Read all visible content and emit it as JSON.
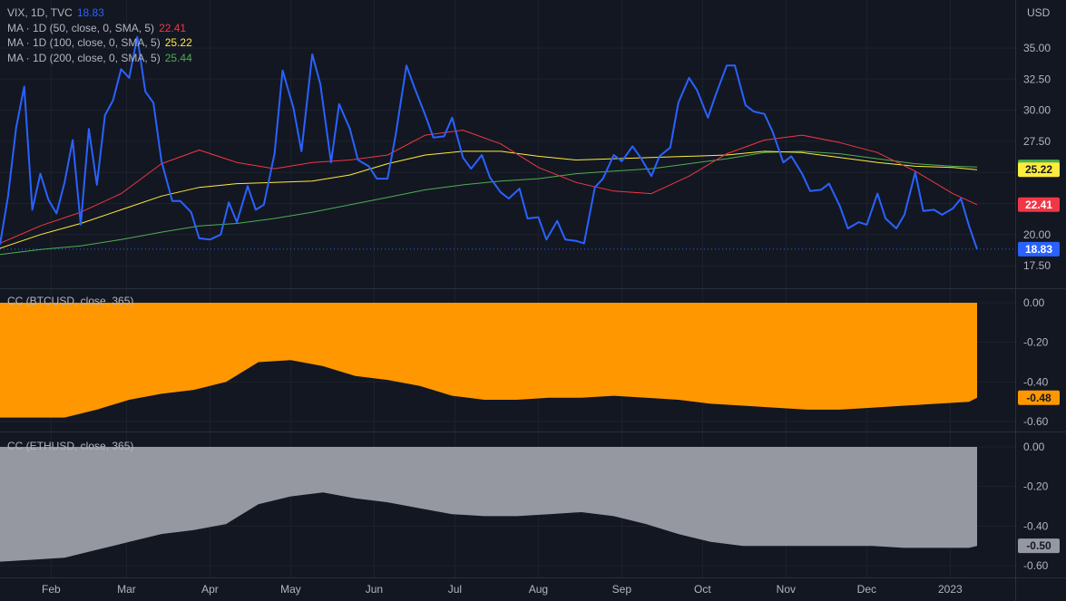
{
  "legend": {
    "main": {
      "label": "VIX, 1D, TVC",
      "value": "18.83",
      "color": "#2962ff"
    },
    "ma50": {
      "label": "MA · 1D (50, close, 0, SMA, 5)",
      "value": "22.41",
      "color": "#f23645"
    },
    "ma100": {
      "label": "MA · 1D (100, close, 0, SMA, 5)",
      "value": "25.22",
      "color": "#ffeb3b"
    },
    "ma200": {
      "label": "MA · 1D (200, close, 0, SMA, 5)",
      "value": "25.44",
      "color": "#4caf50"
    }
  },
  "price_axis": {
    "unit": "USD",
    "ticks": [
      "35.00",
      "32.50",
      "30.00",
      "27.50",
      "25.00",
      "22.50",
      "20.00",
      "17.50"
    ]
  },
  "badges": {
    "ma200": {
      "text": "25.44",
      "value": 25.44,
      "bg": "#4caf50",
      "fg": "#131722"
    },
    "ma100": {
      "text": "25.22",
      "value": 25.22,
      "bg": "#ffeb3b",
      "fg": "#131722"
    },
    "ma50": {
      "text": "22.41",
      "value": 22.41,
      "bg": "#f23645",
      "fg": "#ffffff"
    },
    "last": {
      "text": "18.83",
      "value": 18.83,
      "bg": "#2962ff",
      "fg": "#ffffff"
    },
    "btc": {
      "text": "-0.48",
      "value": -0.48,
      "bg": "#ff9800",
      "fg": "#131722"
    },
    "eth": {
      "text": "-0.50",
      "value": -0.5,
      "bg": "#9598a1",
      "fg": "#131722"
    }
  },
  "panes": {
    "btc": {
      "title": "CC (BTCUSD, close, 365)",
      "ticks": [
        "0.00",
        "-0.20",
        "-0.40",
        "-0.60"
      ],
      "color": "#ff9800"
    },
    "eth": {
      "title": "CC (ETHUSD, close, 365)",
      "ticks": [
        "0.00",
        "-0.20",
        "-0.40",
        "-0.60"
      ],
      "color": "#9598a1"
    }
  },
  "time_axis": {
    "labels": [
      "Feb",
      "Mar",
      "Apr",
      "May",
      "Jun",
      "Jul",
      "Aug",
      "Sep",
      "Oct",
      "Nov",
      "Dec",
      "2023"
    ]
  },
  "chart_data": [
    {
      "type": "line",
      "title": "VIX, 1D, TVC",
      "ylabel": "USD",
      "ylim": [
        17.0,
        36.5
      ],
      "x_domain": [
        "2022-01-13",
        "2023-01-11"
      ],
      "x_ticks": [
        {
          "label": "Feb",
          "date": "2022-02-01"
        },
        {
          "label": "Mar",
          "date": "2022-03-01"
        },
        {
          "label": "Apr",
          "date": "2022-04-01"
        },
        {
          "label": "May",
          "date": "2022-05-01"
        },
        {
          "label": "Jun",
          "date": "2022-06-01"
        },
        {
          "label": "Jul",
          "date": "2022-07-01"
        },
        {
          "label": "Aug",
          "date": "2022-08-01"
        },
        {
          "label": "Sep",
          "date": "2022-09-01"
        },
        {
          "label": "Oct",
          "date": "2022-10-01"
        },
        {
          "label": "Nov",
          "date": "2022-11-01"
        },
        {
          "label": "Dec",
          "date": "2022-12-01"
        },
        {
          "label": "2023",
          "date": "2023-01-01"
        }
      ],
      "series": [
        {
          "name": "VIX, 1D, TVC",
          "color": "#2962ff",
          "width": 2,
          "x": [
            "2022-01-13",
            "2022-01-16",
            "2022-01-19",
            "2022-01-22",
            "2022-01-25",
            "2022-01-28",
            "2022-01-31",
            "2022-02-03",
            "2022-02-06",
            "2022-02-09",
            "2022-02-12",
            "2022-02-15",
            "2022-02-18",
            "2022-02-21",
            "2022-02-24",
            "2022-02-27",
            "2022-03-02",
            "2022-03-05",
            "2022-03-08",
            "2022-03-11",
            "2022-03-14",
            "2022-03-18",
            "2022-03-21",
            "2022-03-25",
            "2022-03-28",
            "2022-04-01",
            "2022-04-05",
            "2022-04-08",
            "2022-04-11",
            "2022-04-15",
            "2022-04-18",
            "2022-04-21",
            "2022-04-25",
            "2022-04-28",
            "2022-05-02",
            "2022-05-05",
            "2022-05-09",
            "2022-05-12",
            "2022-05-16",
            "2022-05-19",
            "2022-05-23",
            "2022-05-26",
            "2022-05-30",
            "2022-06-02",
            "2022-06-06",
            "2022-06-09",
            "2022-06-13",
            "2022-06-16",
            "2022-06-20",
            "2022-06-23",
            "2022-06-27",
            "2022-06-30",
            "2022-07-04",
            "2022-07-07",
            "2022-07-11",
            "2022-07-14",
            "2022-07-18",
            "2022-07-21",
            "2022-07-25",
            "2022-07-28",
            "2022-08-01",
            "2022-08-04",
            "2022-08-08",
            "2022-08-11",
            "2022-08-15",
            "2022-08-18",
            "2022-08-22",
            "2022-08-25",
            "2022-08-29",
            "2022-09-01",
            "2022-09-05",
            "2022-09-08",
            "2022-09-12",
            "2022-09-15",
            "2022-09-19",
            "2022-09-22",
            "2022-09-26",
            "2022-09-29",
            "2022-10-03",
            "2022-10-06",
            "2022-10-10",
            "2022-10-13",
            "2022-10-17",
            "2022-10-20",
            "2022-10-24",
            "2022-10-27",
            "2022-10-31",
            "2022-11-03",
            "2022-11-07",
            "2022-11-10",
            "2022-11-14",
            "2022-11-17",
            "2022-11-21",
            "2022-11-24",
            "2022-11-28",
            "2022-12-01",
            "2022-12-05",
            "2022-12-08",
            "2022-12-12",
            "2022-12-15",
            "2022-12-19",
            "2022-12-22",
            "2022-12-26",
            "2022-12-29",
            "2023-01-02",
            "2023-01-05",
            "2023-01-08",
            "2023-01-11"
          ],
          "y": [
            19.2,
            23.1,
            28.6,
            31.9,
            22.0,
            24.9,
            22.8,
            21.7,
            24.2,
            27.6,
            20.8,
            28.5,
            24.0,
            29.6,
            30.8,
            33.3,
            32.6,
            35.9,
            31.5,
            30.6,
            25.9,
            22.7,
            22.7,
            21.8,
            19.7,
            19.6,
            20.0,
            22.6,
            21.0,
            23.9,
            22.0,
            22.4,
            26.5,
            33.2,
            30.2,
            26.7,
            34.5,
            32.1,
            25.8,
            30.5,
            28.5,
            26.0,
            25.5,
            24.5,
            24.5,
            28.0,
            33.6,
            31.8,
            29.6,
            27.8,
            27.9,
            29.4,
            26.2,
            25.3,
            26.4,
            24.6,
            23.4,
            22.9,
            23.7,
            21.3,
            21.4,
            19.6,
            21.1,
            19.6,
            19.5,
            19.3,
            23.8,
            24.5,
            26.4,
            25.9,
            27.1,
            26.2,
            24.7,
            26.3,
            27.0,
            30.6,
            32.6,
            31.6,
            29.4,
            31.3,
            33.6,
            33.6,
            30.4,
            29.9,
            29.7,
            28.3,
            25.8,
            26.3,
            24.9,
            23.5,
            23.6,
            24.1,
            22.3,
            20.5,
            21.0,
            20.8,
            23.3,
            21.3,
            20.5,
            21.6,
            25.0,
            21.9,
            22.0,
            21.6,
            22.1,
            22.9,
            20.7,
            18.83
          ]
        },
        {
          "name": "MA · 1D (50, close, 0, SMA, 5)",
          "color": "#f23645",
          "width": 1,
          "x": [
            "2022-01-13",
            "2022-01-28",
            "2022-02-12",
            "2022-02-27",
            "2022-03-14",
            "2022-03-28",
            "2022-04-11",
            "2022-04-25",
            "2022-05-09",
            "2022-05-23",
            "2022-06-06",
            "2022-06-20",
            "2022-07-04",
            "2022-07-18",
            "2022-08-01",
            "2022-08-15",
            "2022-08-29",
            "2022-09-12",
            "2022-09-26",
            "2022-10-10",
            "2022-10-24",
            "2022-11-07",
            "2022-11-21",
            "2022-12-05",
            "2022-12-19",
            "2023-01-02",
            "2023-01-11"
          ],
          "y": [
            19.3,
            20.7,
            21.8,
            23.3,
            25.7,
            26.8,
            25.8,
            25.3,
            25.8,
            26.0,
            26.4,
            28.0,
            28.4,
            27.3,
            25.4,
            24.2,
            23.5,
            23.3,
            24.7,
            26.5,
            27.6,
            28.0,
            27.4,
            26.6,
            25.1,
            23.3,
            22.41
          ]
        },
        {
          "name": "MA · 1D (100, close, 0, SMA, 5)",
          "color": "#ffeb3b",
          "width": 1,
          "x": [
            "2022-01-13",
            "2022-01-28",
            "2022-02-12",
            "2022-02-27",
            "2022-03-14",
            "2022-03-28",
            "2022-04-11",
            "2022-04-25",
            "2022-05-09",
            "2022-05-23",
            "2022-06-06",
            "2022-06-20",
            "2022-07-04",
            "2022-07-18",
            "2022-08-01",
            "2022-08-15",
            "2022-08-29",
            "2022-09-12",
            "2022-09-26",
            "2022-10-10",
            "2022-10-24",
            "2022-11-07",
            "2022-11-21",
            "2022-12-05",
            "2022-12-19",
            "2023-01-02",
            "2023-01-11"
          ],
          "y": [
            18.9,
            20.0,
            20.9,
            22.0,
            23.1,
            23.8,
            24.1,
            24.2,
            24.3,
            24.8,
            25.7,
            26.4,
            26.7,
            26.7,
            26.3,
            26.0,
            26.1,
            26.2,
            26.3,
            26.4,
            26.7,
            26.6,
            26.2,
            25.8,
            25.5,
            25.4,
            25.22
          ]
        },
        {
          "name": "MA · 1D (200, close, 0, SMA, 5)",
          "color": "#4caf50",
          "width": 1,
          "x": [
            "2022-01-13",
            "2022-01-28",
            "2022-02-12",
            "2022-02-27",
            "2022-03-14",
            "2022-03-28",
            "2022-04-11",
            "2022-04-25",
            "2022-05-09",
            "2022-05-23",
            "2022-06-06",
            "2022-06-20",
            "2022-07-04",
            "2022-07-18",
            "2022-08-01",
            "2022-08-15",
            "2022-08-29",
            "2022-09-12",
            "2022-09-26",
            "2022-10-10",
            "2022-10-24",
            "2022-11-07",
            "2022-11-21",
            "2022-12-05",
            "2022-12-19",
            "2023-01-02",
            "2023-01-11"
          ],
          "y": [
            18.4,
            18.8,
            19.1,
            19.6,
            20.2,
            20.7,
            20.9,
            21.3,
            21.8,
            22.4,
            23.0,
            23.6,
            24.0,
            24.3,
            24.5,
            24.9,
            25.1,
            25.3,
            25.7,
            26.1,
            26.6,
            26.7,
            26.5,
            26.1,
            25.7,
            25.5,
            25.44
          ]
        }
      ]
    },
    {
      "type": "area",
      "title": "CC (BTCUSD, close, 365)",
      "ylim": [
        -0.62,
        0.0
      ],
      "x_domain": [
        "2022-01-13",
        "2023-01-11"
      ],
      "series": [
        {
          "name": "CC (BTCUSD, close, 365)",
          "color": "#ff9800",
          "x": [
            "2022-01-13",
            "2022-01-25",
            "2022-02-06",
            "2022-02-18",
            "2022-03-02",
            "2022-03-14",
            "2022-03-26",
            "2022-04-07",
            "2022-04-19",
            "2022-05-01",
            "2022-05-13",
            "2022-05-25",
            "2022-06-06",
            "2022-06-18",
            "2022-06-30",
            "2022-07-12",
            "2022-07-24",
            "2022-08-05",
            "2022-08-17",
            "2022-08-29",
            "2022-09-10",
            "2022-09-22",
            "2022-10-04",
            "2022-10-16",
            "2022-10-28",
            "2022-11-09",
            "2022-11-21",
            "2022-12-03",
            "2022-12-15",
            "2022-12-27",
            "2023-01-08",
            "2023-01-11"
          ],
          "y": [
            -0.58,
            -0.58,
            -0.58,
            -0.54,
            -0.49,
            -0.46,
            -0.44,
            -0.4,
            -0.3,
            -0.29,
            -0.32,
            -0.37,
            -0.39,
            -0.42,
            -0.47,
            -0.49,
            -0.49,
            -0.48,
            -0.48,
            -0.47,
            -0.48,
            -0.49,
            -0.51,
            -0.52,
            -0.53,
            -0.54,
            -0.54,
            -0.53,
            -0.52,
            -0.51,
            -0.5,
            -0.48
          ]
        }
      ]
    },
    {
      "type": "area",
      "title": "CC (ETHUSD, close, 365)",
      "ylim": [
        -0.62,
        0.0
      ],
      "x_domain": [
        "2022-01-13",
        "2023-01-11"
      ],
      "series": [
        {
          "name": "CC (ETHUSD, close, 365)",
          "color": "#9598a1",
          "x": [
            "2022-01-13",
            "2022-01-25",
            "2022-02-06",
            "2022-02-18",
            "2022-03-02",
            "2022-03-14",
            "2022-03-26",
            "2022-04-07",
            "2022-04-19",
            "2022-05-01",
            "2022-05-13",
            "2022-05-25",
            "2022-06-06",
            "2022-06-18",
            "2022-06-30",
            "2022-07-12",
            "2022-07-24",
            "2022-08-05",
            "2022-08-17",
            "2022-08-29",
            "2022-09-10",
            "2022-09-22",
            "2022-10-04",
            "2022-10-16",
            "2022-10-28",
            "2022-11-09",
            "2022-11-21",
            "2022-12-03",
            "2022-12-15",
            "2022-12-27",
            "2023-01-08",
            "2023-01-11"
          ],
          "y": [
            -0.58,
            -0.57,
            -0.56,
            -0.52,
            -0.48,
            -0.44,
            -0.42,
            -0.39,
            -0.29,
            -0.25,
            -0.23,
            -0.26,
            -0.28,
            -0.31,
            -0.34,
            -0.35,
            -0.35,
            -0.34,
            -0.33,
            -0.35,
            -0.39,
            -0.44,
            -0.48,
            -0.5,
            -0.5,
            -0.5,
            -0.5,
            -0.5,
            -0.51,
            -0.51,
            -0.51,
            -0.5
          ]
        }
      ]
    }
  ]
}
